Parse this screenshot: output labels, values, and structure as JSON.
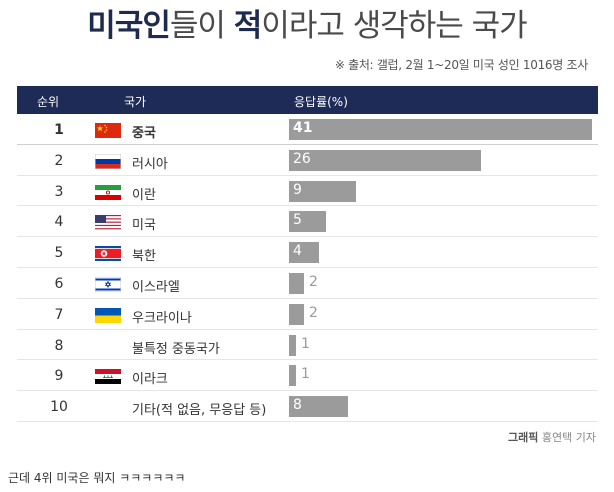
{
  "title": {
    "highlight1": "미국인",
    "part1": "들이 ",
    "highlight2": "적",
    "part2": "이라고 생각하는 국가"
  },
  "source_note": "※ 출처: 갤럽, 2월 1~20일 미국 성인 1016명 조사",
  "header": {
    "rank": "순위",
    "country": "국가",
    "response": "응답률(%)"
  },
  "credit": {
    "label": "그래픽",
    "name": "홍연택 기자"
  },
  "comment": "근데 4위 미국은 뭐지 ㅋㅋㅋㅋㅋㅋ",
  "colors": {
    "header_bg": "#1e2b57",
    "bar": "#9b9b9b",
    "title_highlight": "#1f2a4f"
  },
  "chart_data": {
    "type": "bar",
    "orientation": "horizontal",
    "categories": [
      "중국",
      "러시아",
      "이란",
      "미국",
      "북한",
      "이스라엘",
      "우크라이나",
      "불특정 중동국가",
      "이라크",
      "기타(적 없음, 무응답 등)"
    ],
    "ranks": [
      "1",
      "2",
      "3",
      "4",
      "5",
      "6",
      "7",
      "8",
      "9",
      "10"
    ],
    "values": [
      41,
      26,
      9,
      5,
      4,
      2,
      2,
      1,
      1,
      8
    ],
    "flags": [
      "china-flag",
      "russia-flag",
      "iran-flag",
      "usa-flag",
      "north-korea-flag",
      "israel-flag",
      "ukraine-flag",
      "",
      "iraq-flag",
      ""
    ],
    "title": "",
    "xlabel": "",
    "ylabel": "응답률(%)",
    "xlim": [
      0,
      45
    ]
  }
}
